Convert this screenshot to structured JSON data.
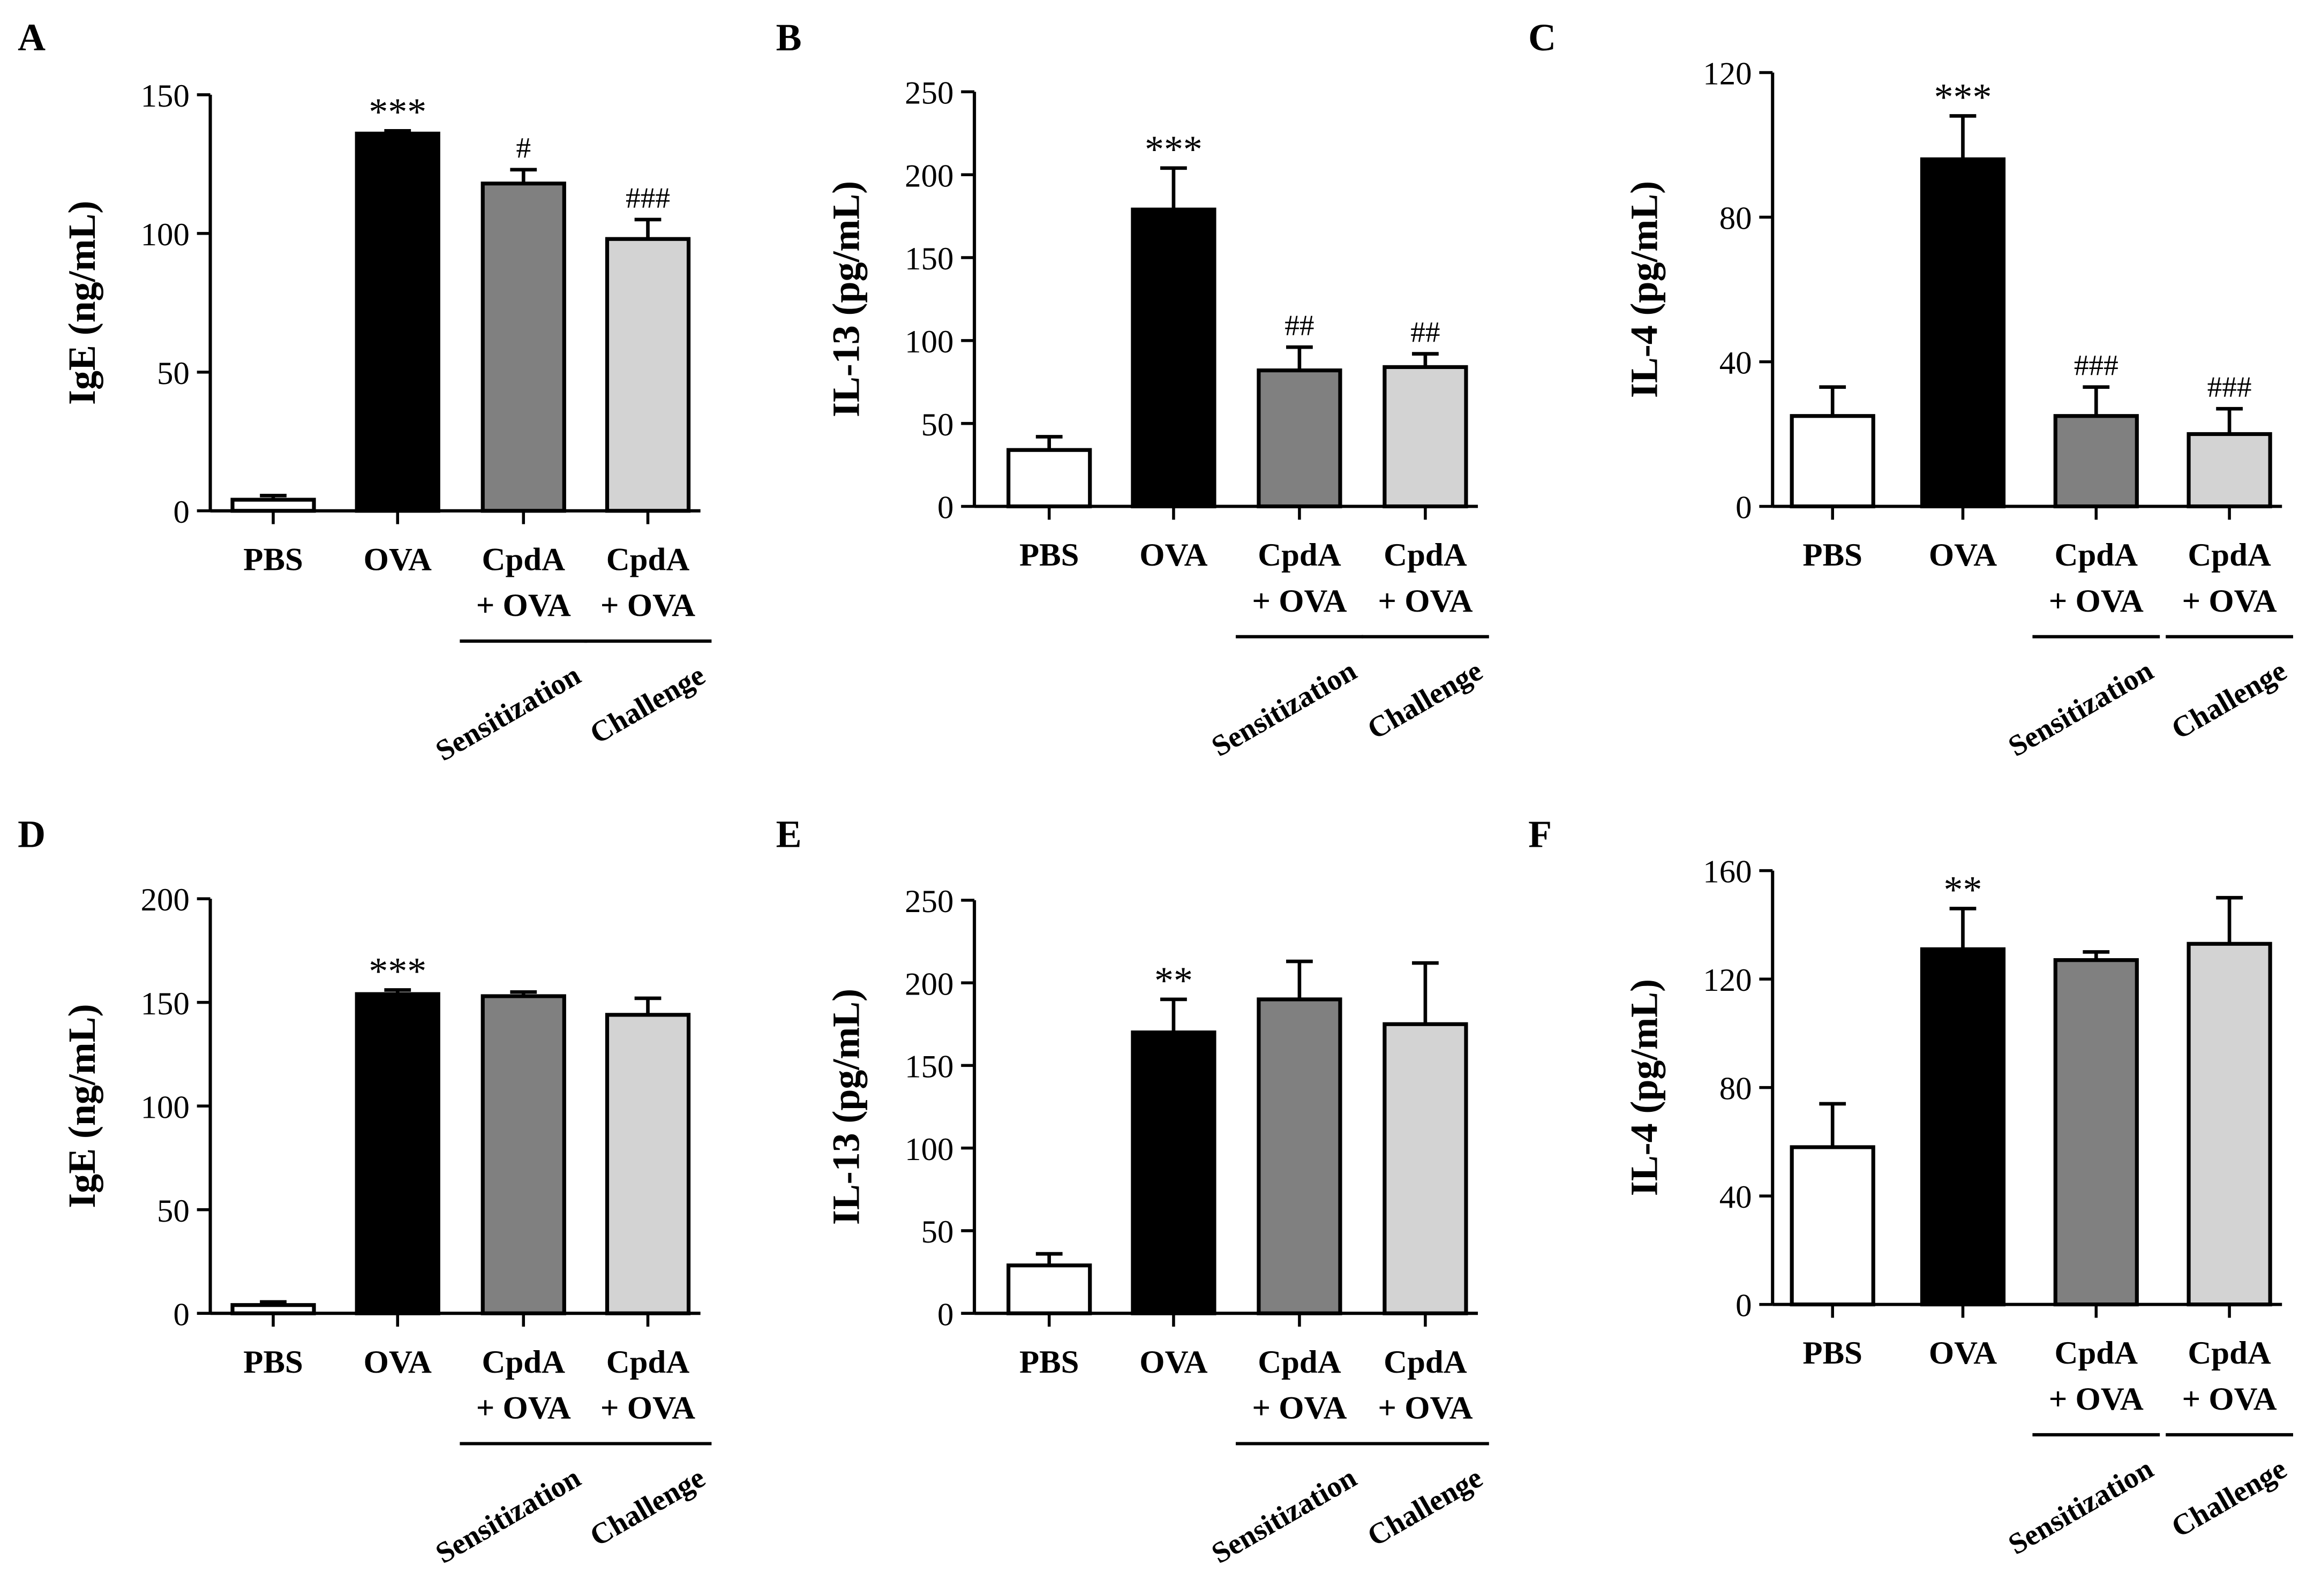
{
  "colors": {
    "axis": "#000000",
    "group_fills": [
      "#ffffff",
      "#000000",
      "#808080",
      "#d3d3d3"
    ]
  },
  "chart_data": [
    {
      "panel": "A",
      "type": "bar",
      "ylabel": "IgE (ng/mL)",
      "ylim": [
        0,
        150
      ],
      "yticks": [
        0,
        50,
        100,
        150
      ],
      "categories": [
        "PBS",
        "OVA",
        [
          "CpdA",
          "+ OVA"
        ],
        [
          "CpdA",
          "+ OVA"
        ]
      ],
      "values": [
        4,
        136,
        118,
        98
      ],
      "errors": [
        1.5,
        1,
        5,
        7
      ],
      "annotations": [
        "",
        "***",
        "#",
        "###"
      ],
      "group_labels": [
        "Sensitization",
        "Challenge"
      ]
    },
    {
      "panel": "B",
      "type": "bar",
      "ylabel": "IL-13 (pg/mL)",
      "ylim": [
        0,
        250
      ],
      "yticks": [
        0,
        50,
        100,
        150,
        200,
        250
      ],
      "categories": [
        "PBS",
        "OVA",
        [
          "CpdA",
          "+ OVA"
        ],
        [
          "CpdA",
          "+ OVA"
        ]
      ],
      "values": [
        34,
        179,
        82,
        84
      ],
      "errors": [
        8,
        25,
        14,
        8
      ],
      "annotations": [
        "",
        "***",
        "##",
        "##"
      ],
      "group_labels": [
        "Sensitization",
        "Challenge"
      ]
    },
    {
      "panel": "C",
      "type": "bar",
      "ylabel": "IL-4 (pg/mL)",
      "ylim": [
        0,
        120
      ],
      "yticks": [
        0,
        40,
        80,
        120
      ],
      "categories": [
        "PBS",
        "OVA",
        [
          "CpdA",
          "+ OVA"
        ],
        [
          "CpdA",
          "+ OVA"
        ]
      ],
      "values": [
        25,
        96,
        25,
        20
      ],
      "errors": [
        8,
        12,
        8,
        7
      ],
      "annotations": [
        "",
        "***",
        "###",
        "###"
      ],
      "group_labels": [
        "Sensitization",
        "Challenge"
      ]
    },
    {
      "panel": "D",
      "type": "bar",
      "ylabel": "IgE (ng/mL)",
      "ylim": [
        0,
        200
      ],
      "yticks": [
        0,
        50,
        100,
        150,
        200
      ],
      "categories": [
        "PBS",
        "OVA",
        [
          "CpdA",
          "+ OVA"
        ],
        [
          "CpdA",
          "+ OVA"
        ]
      ],
      "values": [
        4,
        154,
        153,
        144
      ],
      "errors": [
        1.5,
        2,
        2,
        8
      ],
      "annotations": [
        "",
        "***",
        "",
        ""
      ],
      "group_labels": [
        "Sensitization",
        "Challenge"
      ]
    },
    {
      "panel": "E",
      "type": "bar",
      "ylabel": "IL-13 (pg/mL)",
      "ylim": [
        0,
        250
      ],
      "yticks": [
        0,
        50,
        100,
        150,
        200,
        250
      ],
      "categories": [
        "PBS",
        "OVA",
        [
          "CpdA",
          "+ OVA"
        ],
        [
          "CpdA",
          "+ OVA"
        ]
      ],
      "values": [
        29,
        170,
        190,
        175
      ],
      "errors": [
        7,
        20,
        23,
        37
      ],
      "annotations": [
        "",
        "**",
        "",
        ""
      ],
      "group_labels": [
        "Sensitization",
        "Challenge"
      ]
    },
    {
      "panel": "F",
      "type": "bar",
      "ylabel": "IL-4 (pg/mL)",
      "ylim": [
        0,
        160
      ],
      "yticks": [
        0,
        40,
        80,
        120,
        160
      ],
      "categories": [
        "PBS",
        "OVA",
        [
          "CpdA",
          "+ OVA"
        ],
        [
          "CpdA",
          "+ OVA"
        ]
      ],
      "values": [
        58,
        131,
        127,
        133
      ],
      "errors": [
        16,
        15,
        3,
        17
      ],
      "annotations": [
        "",
        "**",
        "",
        ""
      ],
      "group_labels": [
        "Sensitization",
        "Challenge"
      ]
    }
  ]
}
